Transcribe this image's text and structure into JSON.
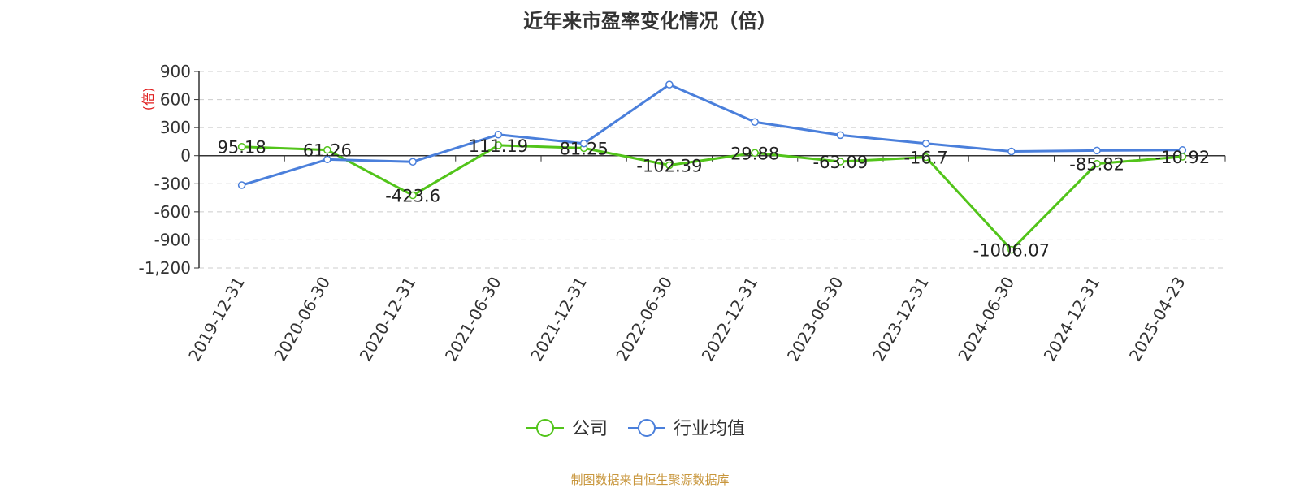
{
  "chart_data": {
    "type": "line",
    "title": "近年来市盈率变化情况（倍）",
    "ylabel": "(倍)",
    "categories": [
      "2019-12-31",
      "2020-06-30",
      "2020-12-31",
      "2021-06-30",
      "2021-12-31",
      "2022-06-30",
      "2022-12-31",
      "2023-06-30",
      "2023-12-31",
      "2024-06-30",
      "2024-12-31",
      "2025-04-23"
    ],
    "ylim": [
      -1200,
      900
    ],
    "yticks": [
      900,
      600,
      300,
      0,
      -300,
      -600,
      -900,
      -1200
    ],
    "ytick_labels": [
      "900",
      "600",
      "300",
      "0",
      "-300",
      "-600",
      "-900",
      "-1,200"
    ],
    "grid": true,
    "legend_position": "bottom-center",
    "series": [
      {
        "name": "公司",
        "color": "#52c41a",
        "values": [
          95.18,
          61.26,
          -423.6,
          111.19,
          81.25,
          -102.39,
          29.88,
          -63.09,
          -16.7,
          -1006.07,
          -85.82,
          -10.92
        ],
        "labels": [
          "95.18",
          "61.26",
          "-423.6",
          "111.19",
          "81.25",
          "-102.39",
          "29.88",
          "-63.09",
          "-16.7",
          "-1006.07",
          "-85.82",
          "-10.92"
        ]
      },
      {
        "name": "行业均值",
        "color": "#4a7fdb",
        "values": [
          -315,
          -40,
          -65,
          225,
          130,
          760,
          360,
          220,
          130,
          45,
          55,
          60
        ]
      }
    ]
  },
  "footer": {
    "source": "制图数据来自恒生聚源数据库"
  }
}
